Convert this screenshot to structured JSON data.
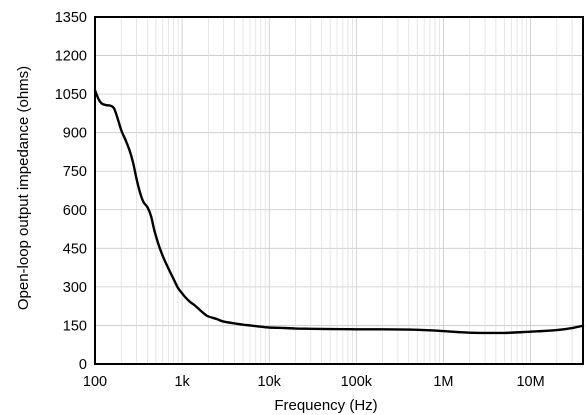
{
  "chart_data": {
    "type": "line",
    "title": "",
    "xlabel": "Frequency (Hz)",
    "ylabel": "Open-loop output impedance (ohms)",
    "x_scale": "log",
    "xlim": [
      100,
      40000000
    ],
    "ylim": [
      0,
      1350
    ],
    "grid": true,
    "x_ticks": [
      100,
      1000,
      10000,
      100000,
      1000000,
      10000000
    ],
    "x_tick_labels": [
      "100",
      "1k",
      "10k",
      "100k",
      "1M",
      "10M"
    ],
    "y_ticks": [
      0,
      150,
      300,
      450,
      600,
      750,
      900,
      1050,
      1200,
      1350
    ],
    "y_tick_labels": [
      "0",
      "150",
      "300",
      "450",
      "600",
      "750",
      "900",
      "1050",
      "1200",
      "1350"
    ],
    "series": [
      {
        "color": "#000000",
        "points": [
          [
            100,
            1065
          ],
          [
            110,
            1030
          ],
          [
            120,
            1013
          ],
          [
            135,
            1007
          ],
          [
            150,
            1005
          ],
          [
            165,
            995
          ],
          [
            180,
            960
          ],
          [
            200,
            910
          ],
          [
            225,
            870
          ],
          [
            250,
            830
          ],
          [
            275,
            780
          ],
          [
            300,
            720
          ],
          [
            330,
            665
          ],
          [
            360,
            630
          ],
          [
            400,
            610
          ],
          [
            440,
            575
          ],
          [
            480,
            520
          ],
          [
            530,
            470
          ],
          [
            600,
            420
          ],
          [
            700,
            370
          ],
          [
            800,
            330
          ],
          [
            900,
            295
          ],
          [
            1000,
            275
          ],
          [
            1100,
            258
          ],
          [
            1250,
            240
          ],
          [
            1400,
            228
          ],
          [
            1600,
            210
          ],
          [
            1800,
            195
          ],
          [
            2000,
            185
          ],
          [
            2500,
            175
          ],
          [
            3000,
            165
          ],
          [
            4000,
            158
          ],
          [
            5000,
            153
          ],
          [
            6000,
            150
          ],
          [
            8000,
            145
          ],
          [
            10000,
            142
          ],
          [
            15000,
            140
          ],
          [
            20000,
            138
          ],
          [
            30000,
            137
          ],
          [
            50000,
            136
          ],
          [
            100000,
            135
          ],
          [
            200000,
            135
          ],
          [
            400000,
            134
          ],
          [
            700000,
            131
          ],
          [
            1000000,
            128
          ],
          [
            1500000,
            124
          ],
          [
            2000000,
            122
          ],
          [
            3000000,
            121
          ],
          [
            5000000,
            121
          ],
          [
            8000000,
            124
          ],
          [
            12000000,
            127
          ],
          [
            20000000,
            132
          ],
          [
            30000000,
            140
          ],
          [
            40000000,
            149
          ]
        ]
      }
    ]
  }
}
